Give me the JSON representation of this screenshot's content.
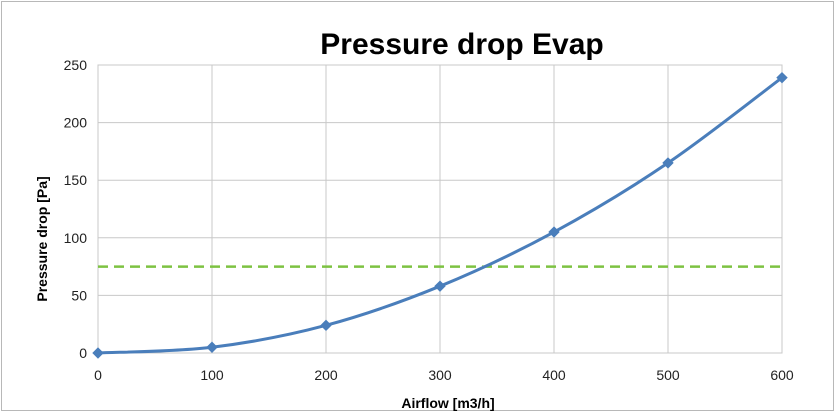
{
  "chart_data": {
    "type": "line",
    "title": "Pressure drop Evap",
    "xlabel": "Airflow [m3/h]",
    "ylabel": "Pressure  drop [Pa]",
    "xlim": [
      0,
      600
    ],
    "ylim": [
      0,
      250
    ],
    "xticks": [
      0,
      100,
      200,
      300,
      400,
      500,
      600
    ],
    "yticks": [
      0,
      50,
      100,
      150,
      200,
      250
    ],
    "grid": true,
    "legend": "none",
    "series": [
      {
        "color": "#4a7ebb",
        "marker": "diamond",
        "smooth": true,
        "x": [
          0,
          100,
          200,
          300,
          400,
          500,
          600
        ],
        "y": [
          0,
          5,
          24,
          58,
          105,
          165,
          239
        ]
      }
    ],
    "reference_lines": [
      {
        "y": 75,
        "color": "#7dc242",
        "style": "dashed"
      }
    ]
  }
}
